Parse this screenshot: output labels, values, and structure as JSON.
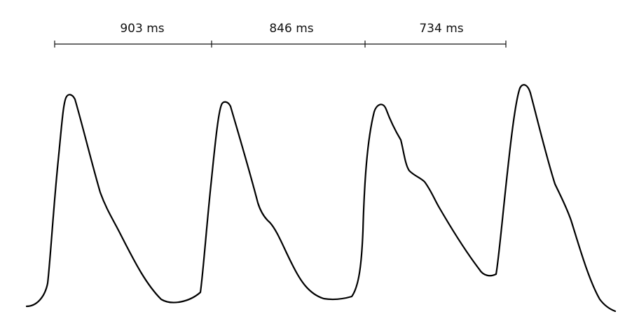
{
  "colors": {
    "background": "#ffffff",
    "stroke": "#000000"
  },
  "intervals": [
    {
      "label": "903 ms"
    },
    {
      "label": "846 ms"
    },
    {
      "label": "734 ms"
    }
  ]
}
